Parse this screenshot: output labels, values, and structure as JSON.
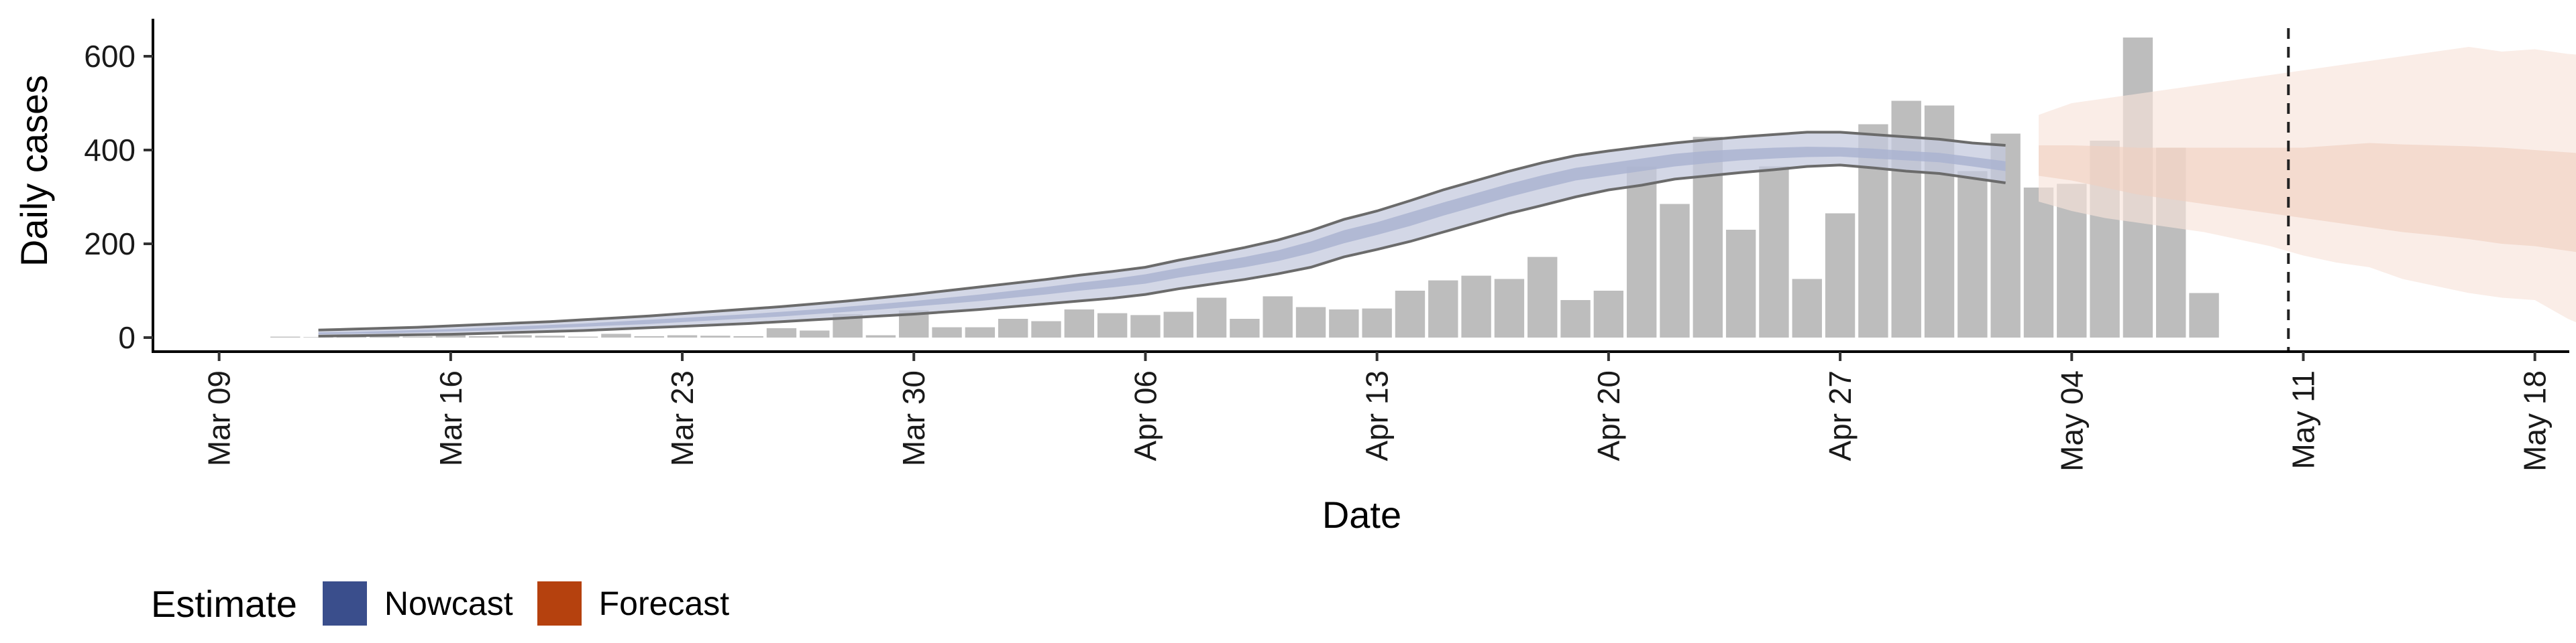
{
  "chart_data": {
    "type": "bar",
    "xlabel": "Date",
    "ylabel": "Daily cases",
    "ylim": [
      -30,
      680
    ],
    "xlim": [
      "2020-03-07",
      "2020-05-19"
    ],
    "y_ticks": [
      0,
      200,
      400,
      600
    ],
    "x_ticks": [
      {
        "date": "2020-03-09",
        "label": "Mar 09"
      },
      {
        "date": "2020-03-16",
        "label": "Mar 16"
      },
      {
        "date": "2020-03-23",
        "label": "Mar 23"
      },
      {
        "date": "2020-03-30",
        "label": "Mar 30"
      },
      {
        "date": "2020-04-06",
        "label": "Apr 06"
      },
      {
        "date": "2020-04-13",
        "label": "Apr 13"
      },
      {
        "date": "2020-04-20",
        "label": "Apr 20"
      },
      {
        "date": "2020-04-27",
        "label": "Apr 27"
      },
      {
        "date": "2020-05-04",
        "label": "May 04"
      },
      {
        "date": "2020-05-11",
        "label": "May 11"
      },
      {
        "date": "2020-05-18",
        "label": "May 18"
      }
    ],
    "reference_line_date": "2020-05-10",
    "bars_start_date": "2020-03-11",
    "bars": [
      2,
      1,
      2,
      3,
      2,
      5,
      3,
      5,
      4,
      2,
      8,
      3,
      5,
      4,
      3,
      20,
      15,
      50,
      5,
      58,
      22,
      22,
      40,
      35,
      60,
      52,
      48,
      55,
      85,
      40,
      88,
      65,
      60,
      62,
      100,
      122,
      132,
      125,
      172,
      80,
      100,
      365,
      285,
      428,
      230,
      365,
      125,
      265,
      455,
      505,
      495,
      355,
      435,
      320,
      328,
      420,
      640,
      405,
      95
    ],
    "nowcast_start_date": "2020-03-12",
    "nowcast": {
      "lower": [
        3,
        4,
        5,
        6,
        7,
        9,
        11,
        13,
        15,
        18,
        21,
        24,
        27,
        30,
        34,
        38,
        42,
        46,
        50,
        55,
        60,
        66,
        72,
        78,
        84,
        92,
        104,
        114,
        124,
        136,
        150,
        172,
        188,
        205,
        225,
        245,
        265,
        282,
        300,
        315,
        325,
        338,
        345,
        352,
        358,
        365,
        368,
        362,
        355,
        350,
        340,
        330
      ],
      "mid_lower": [
        7,
        8,
        9,
        11,
        13,
        15,
        17,
        20,
        23,
        26,
        29,
        33,
        37,
        41,
        45,
        50,
        55,
        60,
        66,
        72,
        78,
        85,
        92,
        100,
        107,
        115,
        128,
        139,
        150,
        163,
        180,
        201,
        219,
        238,
        260,
        280,
        300,
        318,
        335,
        345,
        355,
        365,
        372,
        378,
        382,
        385,
        386,
        382,
        378,
        374,
        365,
        355
      ],
      "mid_upper": [
        11,
        12,
        14,
        16,
        18,
        21,
        24,
        27,
        30,
        34,
        38,
        42,
        46,
        50,
        55,
        60,
        66,
        72,
        78,
        85,
        92,
        100,
        108,
        117,
        125,
        135,
        148,
        160,
        172,
        186,
        205,
        229,
        246,
        267,
        288,
        308,
        328,
        346,
        362,
        372,
        382,
        392,
        398,
        402,
        405,
        407,
        406,
        403,
        398,
        394,
        385,
        376
      ],
      "upper": [
        16,
        18,
        20,
        22,
        25,
        28,
        31,
        34,
        38,
        42,
        46,
        51,
        56,
        61,
        66,
        72,
        78,
        85,
        92,
        100,
        108,
        116,
        124,
        133,
        141,
        150,
        165,
        178,
        192,
        208,
        228,
        252,
        270,
        292,
        315,
        335,
        355,
        373,
        388,
        398,
        407,
        415,
        422,
        428,
        433,
        438,
        438,
        433,
        428,
        423,
        415,
        410
      ]
    },
    "forecast_start_date": "2020-05-03",
    "forecast": {
      "lower": [
        290,
        270,
        255,
        245,
        235,
        225,
        210,
        195,
        175,
        160,
        150,
        125,
        110,
        95,
        85,
        80,
        40,
        10,
        20,
        55
      ],
      "mid_lower": [
        345,
        335,
        320,
        305,
        295,
        285,
        275,
        265,
        255,
        245,
        235,
        225,
        218,
        210,
        200,
        195,
        185,
        175,
        165,
        150
      ],
      "mid_upper": [
        410,
        410,
        408,
        405,
        405,
        405,
        405,
        405,
        405,
        410,
        415,
        412,
        410,
        408,
        405,
        400,
        395,
        390,
        385,
        370
      ],
      "upper": [
        475,
        500,
        510,
        520,
        530,
        540,
        550,
        560,
        570,
        580,
        590,
        600,
        610,
        620,
        610,
        615,
        605,
        600,
        620,
        650
      ]
    }
  },
  "legend": {
    "title": "Estimate",
    "items": [
      {
        "label": "Nowcast",
        "color": "#3a4e8c"
      },
      {
        "label": "Forecast",
        "color": "#b5410e"
      }
    ]
  },
  "colors": {
    "bar": "#bdbdbd",
    "nowcast_band": "#c4cade",
    "nowcast_inner": "#a9b2d0",
    "nowcast_border": "#6b6b6b",
    "forecast_band": "#f7e3da",
    "forecast_inner": "#f0cfc0"
  }
}
